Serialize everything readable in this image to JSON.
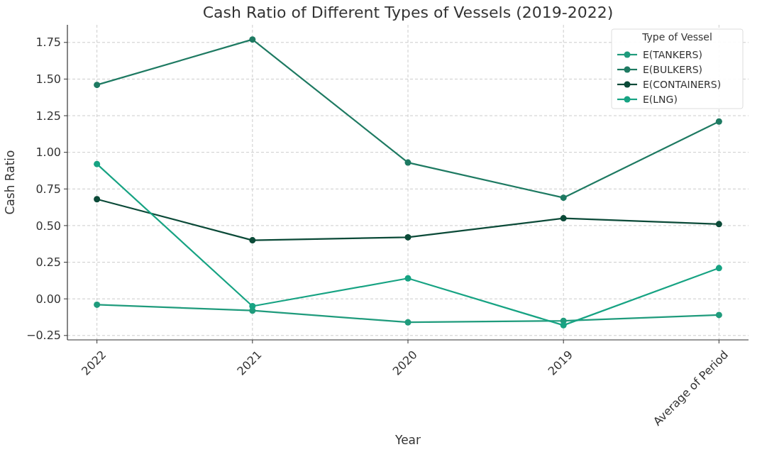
{
  "chart_data": {
    "type": "line",
    "title": "Cash Ratio of Different Types of Vessels (2019-2022)",
    "xlabel": "Year",
    "ylabel": "Cash Ratio",
    "legend_title": "Type of Vessel",
    "categories": [
      "2022",
      "2021",
      "2020",
      "2019",
      "Average of Period"
    ],
    "series": [
      {
        "name": "E(TANKERS)",
        "color": "#1f9b7c",
        "values": [
          -0.04,
          -0.08,
          -0.16,
          -0.15,
          -0.11
        ]
      },
      {
        "name": "E(BULKERS)",
        "color": "#1e7a62",
        "values": [
          1.46,
          1.77,
          0.93,
          0.69,
          1.21
        ]
      },
      {
        "name": "E(CONTAINERS)",
        "color": "#0b4a38",
        "values": [
          0.68,
          0.4,
          0.42,
          0.55,
          0.51
        ]
      },
      {
        "name": "E(LNG)",
        "color": "#17a383",
        "values": [
          0.92,
          -0.05,
          0.14,
          -0.18,
          0.21
        ]
      }
    ],
    "ylim": [
      -0.28,
      1.87
    ],
    "yticks": [
      {
        "value": -0.25,
        "label": "−0.25"
      },
      {
        "value": 0,
        "label": "0.00"
      },
      {
        "value": 0.25,
        "label": "0.25"
      },
      {
        "value": 0.5,
        "label": "0.50"
      },
      {
        "value": 0.75,
        "label": "0.75"
      },
      {
        "value": 1,
        "label": "1.00"
      },
      {
        "value": 1.25,
        "label": "1.25"
      },
      {
        "value": 1.5,
        "label": "1.50"
      },
      {
        "value": 1.75,
        "label": "1.75"
      }
    ],
    "grid": true,
    "legend": "top right",
    "marker": "circle",
    "line_style": "solid"
  }
}
